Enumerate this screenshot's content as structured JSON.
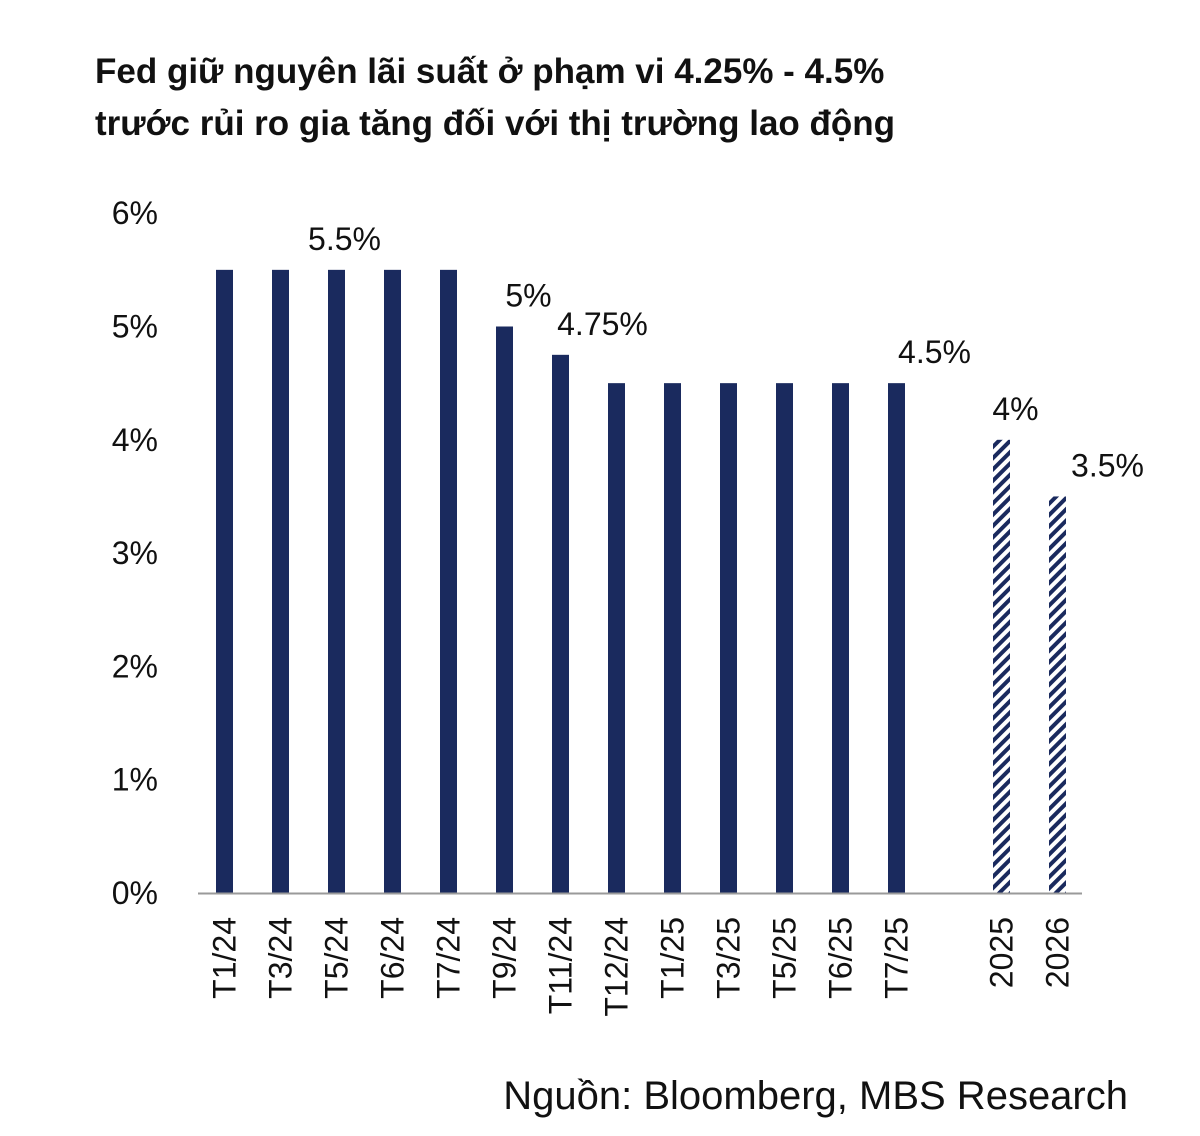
{
  "chart_data": {
    "type": "bar",
    "title_lines": [
      "Fed giữ nguyên lãi suất ở phạm vi 4.25% - 4.5%",
      "trước rủi ro gia tăng đối với thị trường lao động"
    ],
    "xlabel": "",
    "ylabel": "",
    "ylim": [
      0,
      6
    ],
    "yticks": [
      "0%",
      "1%",
      "2%",
      "3%",
      "4%",
      "5%",
      "6%"
    ],
    "grid": false,
    "legend": "none",
    "categories": [
      "T1/24",
      "T3/24",
      "T5/24",
      "T6/24",
      "T7/24",
      "T9/24",
      "T11/24",
      "T12/24",
      "T1/25",
      "T3/25",
      "T5/25",
      "T6/25",
      "T7/25",
      "2025",
      "2026"
    ],
    "values": [
      5.5,
      5.5,
      5.5,
      5.5,
      5.5,
      5.0,
      4.75,
      4.5,
      4.5,
      4.5,
      4.5,
      4.5,
      4.5,
      4.0,
      3.5
    ],
    "bar_styles": [
      "solid",
      "solid",
      "solid",
      "solid",
      "solid",
      "solid",
      "solid",
      "solid",
      "solid",
      "solid",
      "solid",
      "solid",
      "solid",
      "hatched",
      "hatched"
    ],
    "data_labels": [
      {
        "index": 2,
        "text": "5.5%"
      },
      {
        "index": 5,
        "text": "5%"
      },
      {
        "index": 6,
        "text": "4.75%"
      },
      {
        "index": 12,
        "text": "4.5%"
      },
      {
        "index": 13,
        "text": "4%"
      },
      {
        "index": 14,
        "text": "3.5%"
      }
    ],
    "colors": {
      "bar": "#1a2a5e",
      "hatch": "#1a2a5e",
      "axis": "#9a9a9a"
    },
    "source": "Nguồn: Bloomberg, MBS Research"
  }
}
